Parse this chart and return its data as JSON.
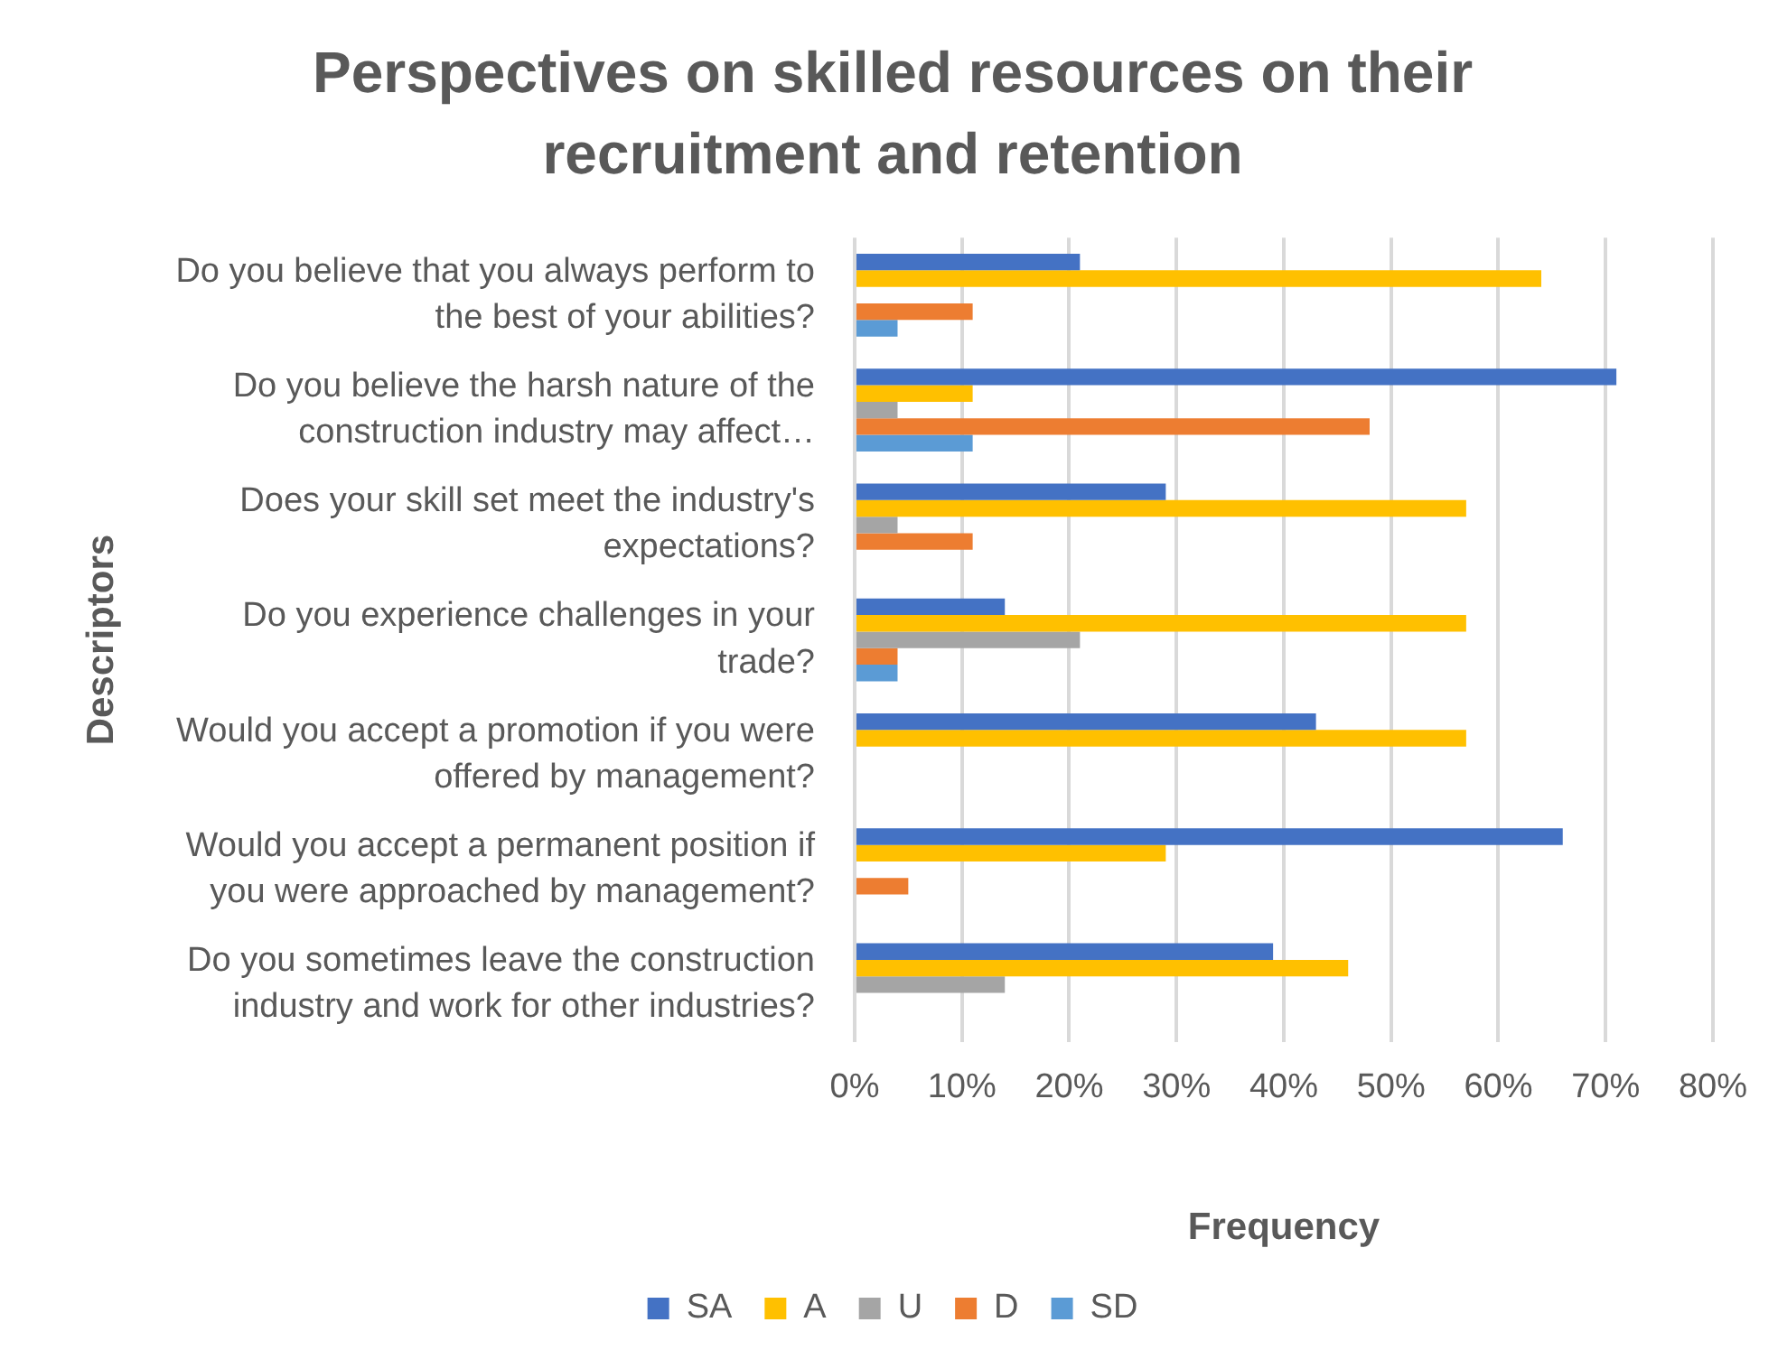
{
  "chart_data": {
    "type": "bar",
    "orientation": "horizontal",
    "title": "Perspectives on skilled resources on their recruitment and retention",
    "xlabel": "Frequency",
    "ylabel": "Descriptors",
    "categories": [
      "Do you believe that you always perform to the best of your abilities?",
      "Do you believe the harsh nature of the construction industry may affect…",
      "Does your skill set meet the industry's expectations?",
      "Do you experience challenges in your trade?",
      "Would you accept a promotion if you were offered by management?",
      "Would you accept a permanent position if you were approached by management?",
      "Do you sometimes leave the construction industry and work for other industries?"
    ],
    "series": [
      {
        "name": "SA",
        "color": "#4472c4",
        "values": [
          21,
          71,
          29,
          14,
          43,
          66,
          39
        ]
      },
      {
        "name": "A",
        "color": "#ffc000",
        "values": [
          64,
          11,
          57,
          57,
          57,
          29,
          46
        ]
      },
      {
        "name": "U",
        "color": "#a5a5a5",
        "values": [
          0,
          4,
          4,
          21,
          0,
          0,
          14
        ]
      },
      {
        "name": "D",
        "color": "#ed7d31",
        "values": [
          11,
          48,
          11,
          4,
          0,
          5,
          0
        ]
      },
      {
        "name": "SD",
        "color": "#5b9bd5",
        "values": [
          4,
          11,
          0,
          4,
          0,
          0,
          0
        ]
      }
    ],
    "xlim": [
      0,
      80
    ],
    "xticks": [
      {
        "value": 0,
        "label": "0%"
      },
      {
        "value": 10,
        "label": "10%"
      },
      {
        "value": 20,
        "label": "20%"
      },
      {
        "value": 30,
        "label": "30%"
      },
      {
        "value": 40,
        "label": "40%"
      },
      {
        "value": 50,
        "label": "50%"
      },
      {
        "value": 60,
        "label": "60%"
      },
      {
        "value": 70,
        "label": "70%"
      },
      {
        "value": 80,
        "label": "80%"
      }
    ],
    "grid": "x",
    "legend": "bottom"
  }
}
